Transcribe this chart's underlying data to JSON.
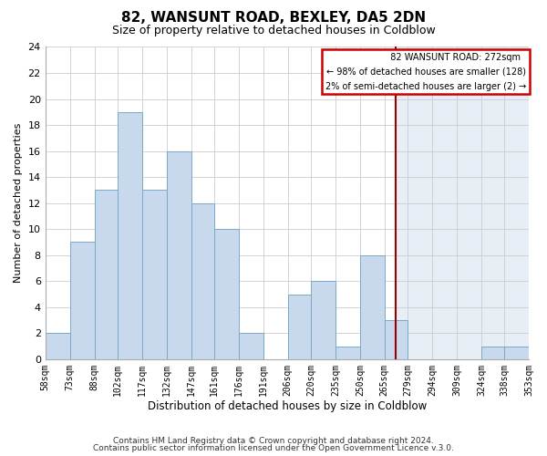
{
  "title": "82, WANSUNT ROAD, BEXLEY, DA5 2DN",
  "subtitle": "Size of property relative to detached houses in Coldblow",
  "xlabel": "Distribution of detached houses by size in Coldblow",
  "ylabel": "Number of detached properties",
  "footer_lines": [
    "Contains HM Land Registry data © Crown copyright and database right 2024.",
    "Contains public sector information licensed under the Open Government Licence v.3.0."
  ],
  "bin_edges": [
    58,
    73,
    88,
    102,
    117,
    132,
    147,
    161,
    176,
    191,
    206,
    220,
    235,
    250,
    265,
    279,
    294,
    309,
    324,
    338,
    353
  ],
  "bin_labels": [
    "58sqm",
    "73sqm",
    "88sqm",
    "102sqm",
    "117sqm",
    "132sqm",
    "147sqm",
    "161sqm",
    "176sqm",
    "191sqm",
    "206sqm",
    "220sqm",
    "235sqm",
    "250sqm",
    "265sqm",
    "279sqm",
    "294sqm",
    "309sqm",
    "324sqm",
    "338sqm",
    "353sqm"
  ],
  "counts": [
    2,
    9,
    13,
    19,
    13,
    16,
    12,
    10,
    2,
    0,
    5,
    6,
    1,
    8,
    3,
    0,
    0,
    0,
    1,
    1
  ],
  "bar_color": "#c8d8ed",
  "bar_edgecolor": "#7aaac8",
  "grid_color": "#cccccc",
  "bg_color": "#ffffff",
  "plot_right_color": "#e8eef6",
  "property_line_x": 272,
  "property_line_color": "#990000",
  "ylim": [
    0,
    24
  ],
  "yticks": [
    0,
    2,
    4,
    6,
    8,
    10,
    12,
    14,
    16,
    18,
    20,
    22,
    24
  ],
  "legend_title": "82 WANSUNT ROAD: 272sqm",
  "legend_line1": "← 98% of detached houses are smaller (128)",
  "legend_line2": "2% of semi-detached houses are larger (2) →",
  "legend_box_color": "#ffffff",
  "legend_border_color": "#cc0000",
  "title_fontsize": 11,
  "subtitle_fontsize": 9,
  "axis_label_fontsize": 8,
  "tick_fontsize": 7,
  "footer_fontsize": 6.5
}
